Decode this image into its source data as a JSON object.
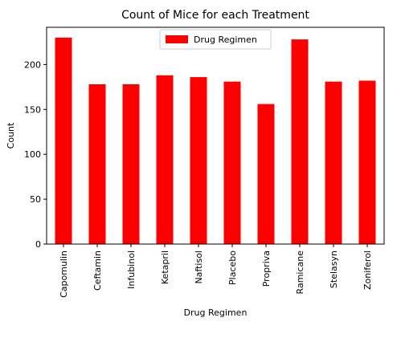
{
  "chart_data": {
    "type": "bar",
    "title": "Count of Mice for each Treatment",
    "xlabel": "Drug Regimen",
    "ylabel": "Count",
    "categories": [
      "Capomulin",
      "Ceftamin",
      "Infubinol",
      "Ketapril",
      "Naftisol",
      "Placebo",
      "Propriva",
      "Ramicane",
      "Stelasyn",
      "Zoniferol"
    ],
    "series": [
      {
        "name": "Drug Regimen",
        "values": [
          230,
          178,
          178,
          188,
          186,
          181,
          156,
          228,
          181,
          182
        ],
        "color": "#ff0000"
      }
    ],
    "ylim": [
      0,
      241.5
    ],
    "yticks": [
      0,
      50,
      100,
      150,
      200
    ],
    "grid": false,
    "legend_position": "top-center"
  }
}
